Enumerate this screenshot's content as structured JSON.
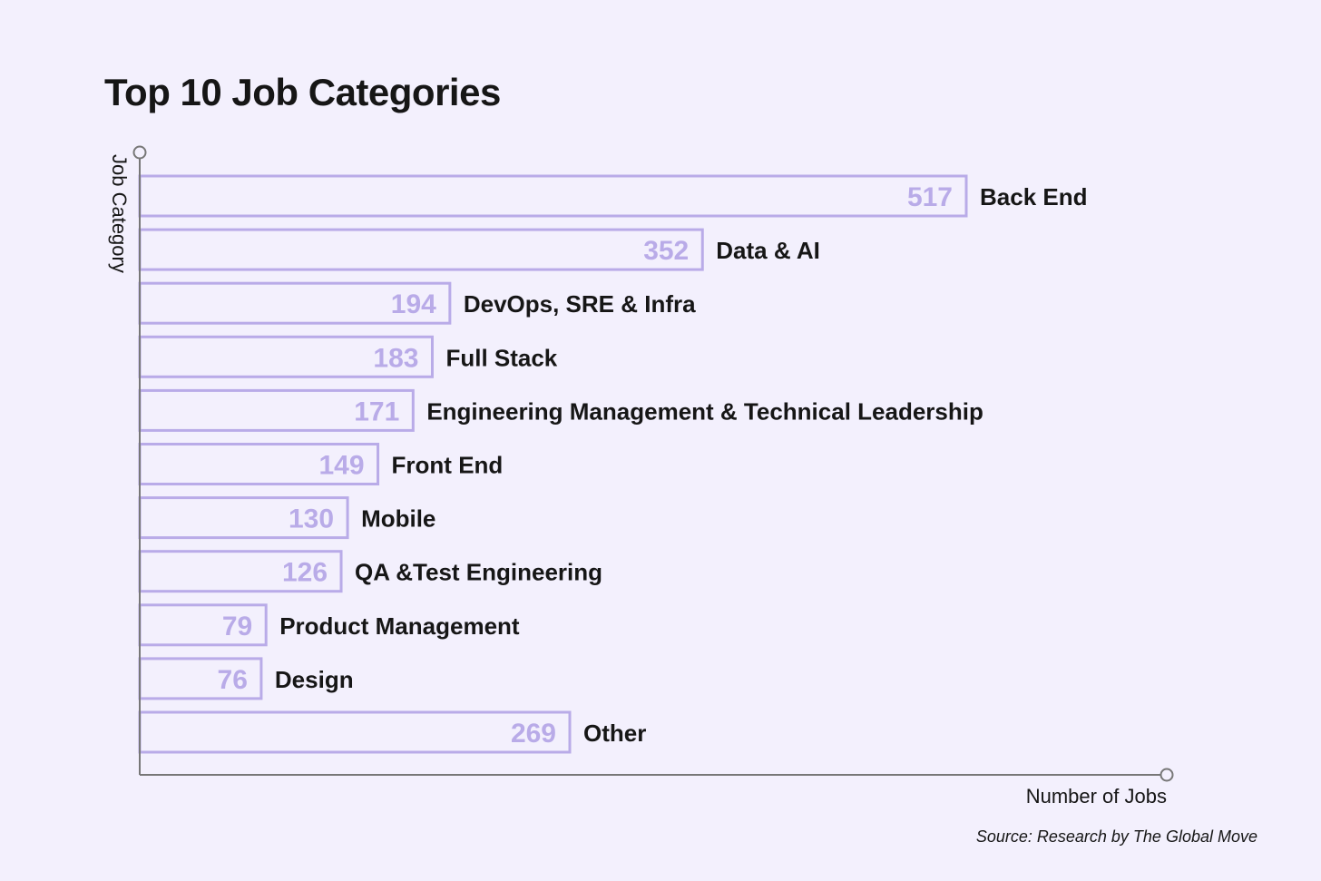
{
  "chart_data": {
    "type": "bar",
    "orientation": "horizontal",
    "title": "Top 10 Job Categories",
    "xlabel": "Number of Jobs",
    "ylabel": "Job Category",
    "source": "Source: Research by The Global Move",
    "categories": [
      "Back End",
      "Data & AI",
      "DevOps, SRE & Infra",
      "Full Stack",
      "Engineering Management & Technical Leadership",
      "Front End",
      "Mobile",
      "QA &Test Engineering",
      "Product Management",
      "Design",
      "Other"
    ],
    "values": [
      517,
      352,
      194,
      183,
      171,
      149,
      130,
      126,
      79,
      76,
      269
    ],
    "xlim": [
      0,
      517
    ],
    "grid": false,
    "colors": {
      "background": "#f3f0fd",
      "bar_outline": "#b9abe8",
      "value_text": "#b9abe8",
      "label_text": "#161616",
      "axis": "#777777"
    }
  }
}
